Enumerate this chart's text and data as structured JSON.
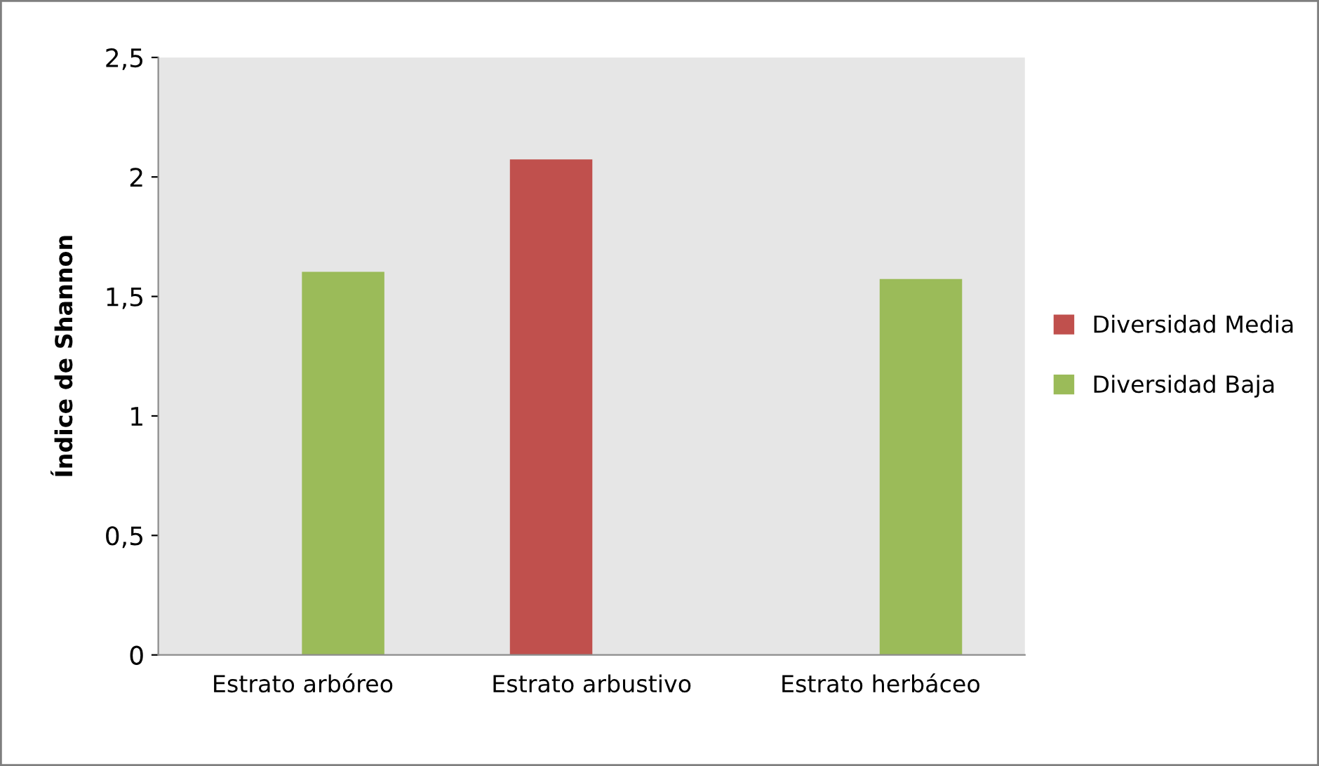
{
  "chart_data": {
    "type": "bar",
    "ylabel": "Índice de Shannon",
    "categories": [
      "Estrato arbóreo",
      "Estrato arbustivo",
      "Estrato herbáceo"
    ],
    "series": [
      {
        "name": "Diversidad Media",
        "color": "#c0504d",
        "values": [
          null,
          2.07,
          null
        ]
      },
      {
        "name": "Diversidad Baja",
        "color": "#9bbb59",
        "values": [
          1.6,
          null,
          1.57
        ]
      }
    ],
    "ylim": [
      0,
      2.5
    ],
    "yticks": [
      0,
      {
        "value": 0.5,
        "label": "0,5"
      },
      1,
      {
        "value": 1.5,
        "label": "1,5"
      },
      2,
      {
        "value": 2.5,
        "label": "2,5"
      }
    ],
    "grid": false,
    "legend": "right"
  }
}
